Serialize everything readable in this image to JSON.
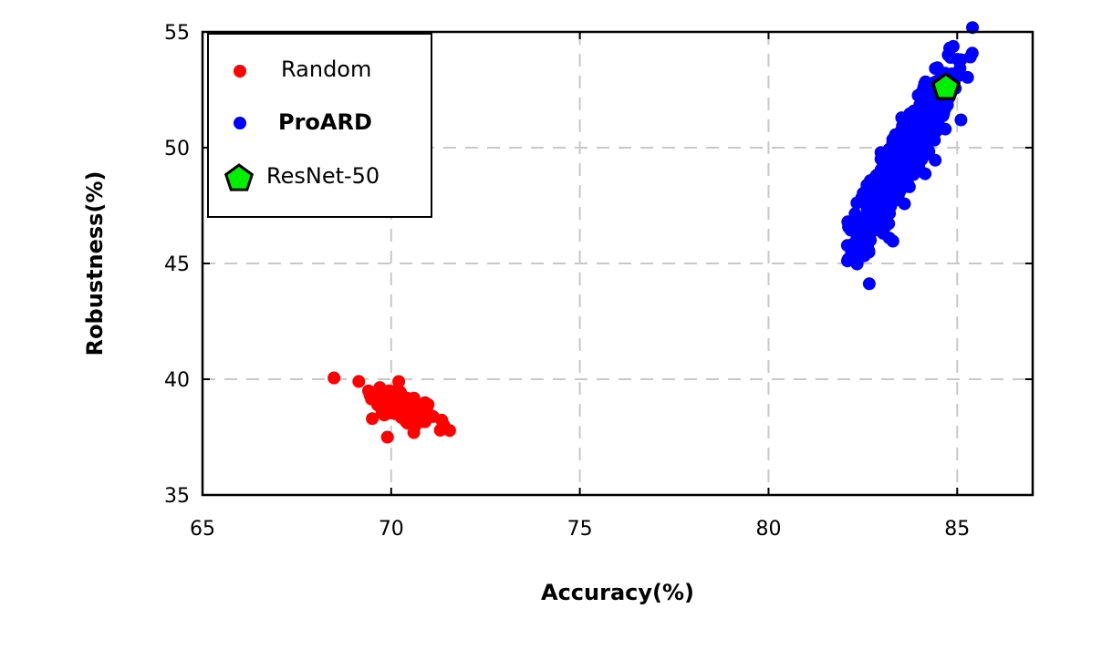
{
  "chart_data": {
    "type": "scatter",
    "xlabel": "Accuracy(%)",
    "ylabel": "Robustness(%)",
    "xlim": [
      65,
      87
    ],
    "ylim": [
      35,
      55
    ],
    "xticks": [
      "65",
      "70",
      "75",
      "80",
      "85"
    ],
    "yticks": [
      "35",
      "40",
      "45",
      "50",
      "55"
    ],
    "grid": true,
    "legend_position": "top-left",
    "series": [
      {
        "name": "Random",
        "color": "#ff0000",
        "marker": "circle",
        "cluster": {
          "center": [
            70.3,
            38.8
          ],
          "spread": [
            0.45,
            0.45
          ],
          "corr": -0.6,
          "count": 140
        },
        "points": [
          [
            69.4,
            39.5
          ],
          [
            69.5,
            38.3
          ],
          [
            69.9,
            37.5
          ],
          [
            70.2,
            39.9
          ],
          [
            71.3,
            37.8
          ],
          [
            71.4,
            38.0
          ],
          [
            70.6,
            37.7
          ]
        ]
      },
      {
        "name": "ProARD",
        "color": "#0000ff",
        "marker": "circle",
        "cluster": {
          "center": [
            83.6,
            49.6
          ],
          "spread": [
            0.6,
            1.7
          ],
          "corr": 0.9,
          "count": 650
        },
        "points": [
          [
            82.1,
            46.8
          ],
          [
            82.3,
            45.5
          ],
          [
            82.7,
            46.0
          ],
          [
            83.2,
            46.1
          ],
          [
            84.8,
            54.3
          ],
          [
            85.1,
            53.8
          ],
          [
            85.1,
            51.2
          ],
          [
            82.6,
            47.7
          ]
        ]
      },
      {
        "name": "ResNet-50",
        "color": "#00ee00",
        "marker": "pentagon",
        "points": [
          [
            84.7,
            52.6
          ]
        ]
      }
    ]
  }
}
